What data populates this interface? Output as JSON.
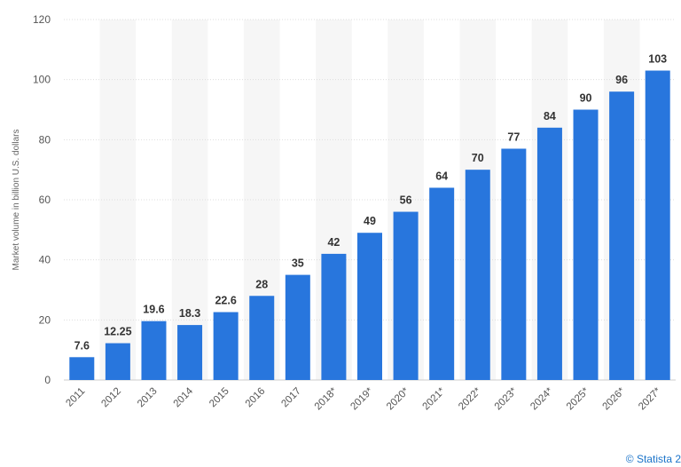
{
  "chart_data": {
    "type": "bar",
    "categories": [
      "2011",
      "2012",
      "2013",
      "2014",
      "2015",
      "2016",
      "2017",
      "2018*",
      "2019*",
      "2020*",
      "2021*",
      "2022*",
      "2023*",
      "2024*",
      "2025*",
      "2026*",
      "2027*"
    ],
    "values": [
      7.6,
      12.25,
      19.6,
      18.3,
      22.6,
      28,
      35,
      42,
      49,
      56,
      64,
      70,
      77,
      84,
      90,
      96,
      103
    ],
    "value_labels": [
      "7.6",
      "12.25",
      "19.6",
      "18.3",
      "22.6",
      "28",
      "35",
      "42",
      "49",
      "56",
      "64",
      "70",
      "77",
      "84",
      "90",
      "96",
      "103"
    ],
    "ylabel": "Market volume in billion U.S. dollars",
    "xlabel": "",
    "ylim": [
      0,
      120
    ],
    "yticks": [
      0,
      20,
      40,
      60,
      80,
      100,
      120
    ],
    "grid": true,
    "bar_color": "#2876dd",
    "band_color": "#f6f6f6",
    "grid_color": "#dddddd"
  },
  "credit": "© Statista 2"
}
